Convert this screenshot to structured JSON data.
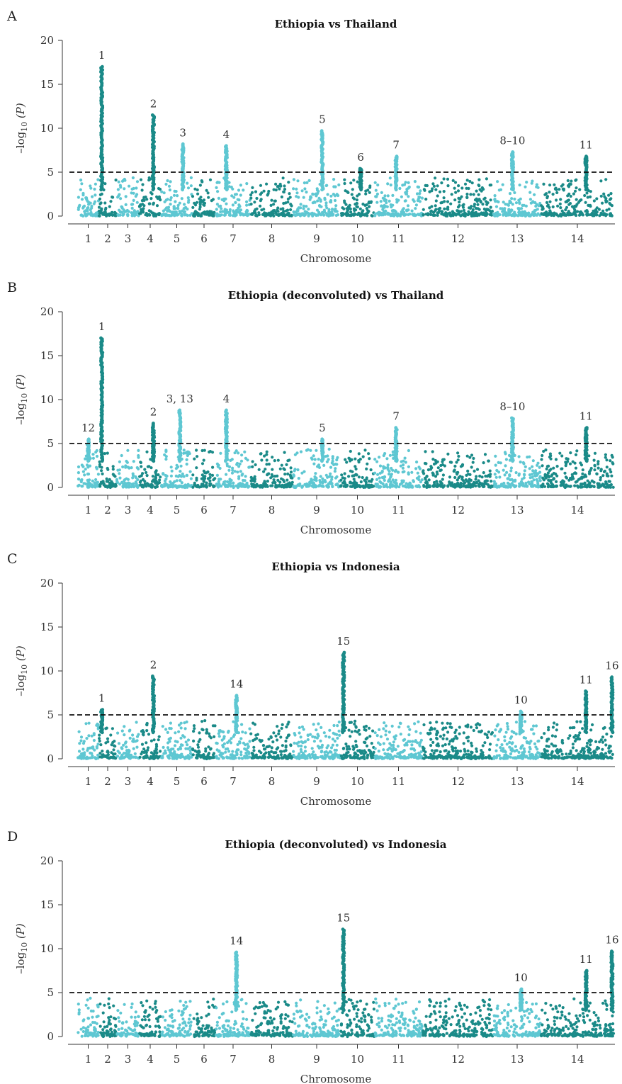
{
  "colors": {
    "dark": "#1a8a88",
    "light": "#5ec7d2"
  },
  "chart_data": [
    {
      "letter": "A",
      "type": "scatter",
      "title": "Ethiopia vs Thailand",
      "xlabel": "Chromosome",
      "ylabel": "-log10(P)",
      "ylim": [
        0,
        20
      ],
      "yticks": [
        0,
        5,
        10,
        15,
        20
      ],
      "threshold": 5,
      "chromosomes": [
        "1",
        "2",
        "3",
        "4",
        "5",
        "6",
        "7",
        "8",
        "9",
        "10",
        "11",
        "12",
        "13",
        "14"
      ],
      "peaks": [
        {
          "label": "1",
          "chrom": 2,
          "pos": 0.15,
          "y": 17
        },
        {
          "label": "2",
          "chrom": 4,
          "pos": 0.65,
          "y": 11.5
        },
        {
          "label": "3",
          "chrom": 5,
          "pos": 0.7,
          "y": 8.2
        },
        {
          "label": "4",
          "chrom": 7,
          "pos": 0.3,
          "y": 8
        },
        {
          "label": "5",
          "chrom": 9,
          "pos": 0.62,
          "y": 9.7
        },
        {
          "label": "6",
          "chrom": 10,
          "pos": 0.6,
          "y": 5.4
        },
        {
          "label": "7",
          "chrom": 11,
          "pos": 0.45,
          "y": 6.8
        },
        {
          "label": "8–10",
          "chrom": 13,
          "pos": 0.4,
          "y": 7.3
        },
        {
          "label": "11",
          "chrom": 14,
          "pos": 0.62,
          "y": 6.8
        }
      ]
    },
    {
      "letter": "B",
      "type": "scatter",
      "title": "Ethiopia (deconvoluted) vs Thailand",
      "xlabel": "Chromosome",
      "ylabel": "-log10(P)",
      "ylim": [
        0,
        20
      ],
      "yticks": [
        0,
        5,
        10,
        15,
        20
      ],
      "threshold": 5,
      "chromosomes": [
        "1",
        "2",
        "3",
        "4",
        "5",
        "6",
        "7",
        "8",
        "9",
        "10",
        "11",
        "12",
        "13",
        "14"
      ],
      "peaks": [
        {
          "label": "12",
          "chrom": 1,
          "pos": 0.5,
          "y": 5.5
        },
        {
          "label": "1",
          "chrom": 2,
          "pos": 0.15,
          "y": 17
        },
        {
          "label": "2",
          "chrom": 4,
          "pos": 0.65,
          "y": 7.3
        },
        {
          "label": "3, 13",
          "chrom": 5,
          "pos": 0.6,
          "y": 8.8
        },
        {
          "label": "4",
          "chrom": 7,
          "pos": 0.3,
          "y": 8.8
        },
        {
          "label": "5",
          "chrom": 9,
          "pos": 0.62,
          "y": 5.5
        },
        {
          "label": "7",
          "chrom": 11,
          "pos": 0.45,
          "y": 6.8
        },
        {
          "label": "8–10",
          "chrom": 13,
          "pos": 0.4,
          "y": 7.9
        },
        {
          "label": "11",
          "chrom": 14,
          "pos": 0.62,
          "y": 6.8
        }
      ]
    },
    {
      "letter": "C",
      "type": "scatter",
      "title": "Ethiopia vs Indonesia",
      "xlabel": "Chromosome",
      "ylabel": "-log10(P)",
      "ylim": [
        0,
        20
      ],
      "yticks": [
        0,
        5,
        10,
        15,
        20
      ],
      "threshold": 5,
      "chromosomes": [
        "1",
        "2",
        "3",
        "4",
        "5",
        "6",
        "7",
        "8",
        "9",
        "10",
        "11",
        "12",
        "13",
        "14"
      ],
      "peaks": [
        {
          "label": "1",
          "chrom": 2,
          "pos": 0.15,
          "y": 5.6
        },
        {
          "label": "2",
          "chrom": 4,
          "pos": 0.65,
          "y": 9.4
        },
        {
          "label": "14",
          "chrom": 7,
          "pos": 0.6,
          "y": 7.2
        },
        {
          "label": "15",
          "chrom": 10,
          "pos": 0.08,
          "y": 12.1
        },
        {
          "label": "10",
          "chrom": 13,
          "pos": 0.58,
          "y": 5.4
        },
        {
          "label": "11",
          "chrom": 14,
          "pos": 0.62,
          "y": 7.7
        },
        {
          "label": "16",
          "chrom": 14,
          "pos": 0.98,
          "y": 9.3
        }
      ]
    },
    {
      "letter": "D",
      "type": "scatter",
      "title": "Ethiopia (deconvoluted) vs Indonesia",
      "xlabel": "Chromosome",
      "ylabel": "-log10(P)",
      "ylim": [
        0,
        20
      ],
      "yticks": [
        0,
        5,
        10,
        15,
        20
      ],
      "threshold": 5,
      "chromosomes": [
        "1",
        "2",
        "3",
        "4",
        "5",
        "6",
        "7",
        "8",
        "9",
        "10",
        "11",
        "12",
        "13",
        "14"
      ],
      "peaks": [
        {
          "label": "14",
          "chrom": 7,
          "pos": 0.6,
          "y": 9.6
        },
        {
          "label": "15",
          "chrom": 10,
          "pos": 0.08,
          "y": 12.2
        },
        {
          "label": "10",
          "chrom": 13,
          "pos": 0.58,
          "y": 5.4
        },
        {
          "label": "11",
          "chrom": 14,
          "pos": 0.62,
          "y": 7.5
        },
        {
          "label": "16",
          "chrom": 14,
          "pos": 0.98,
          "y": 9.7
        }
      ]
    }
  ]
}
